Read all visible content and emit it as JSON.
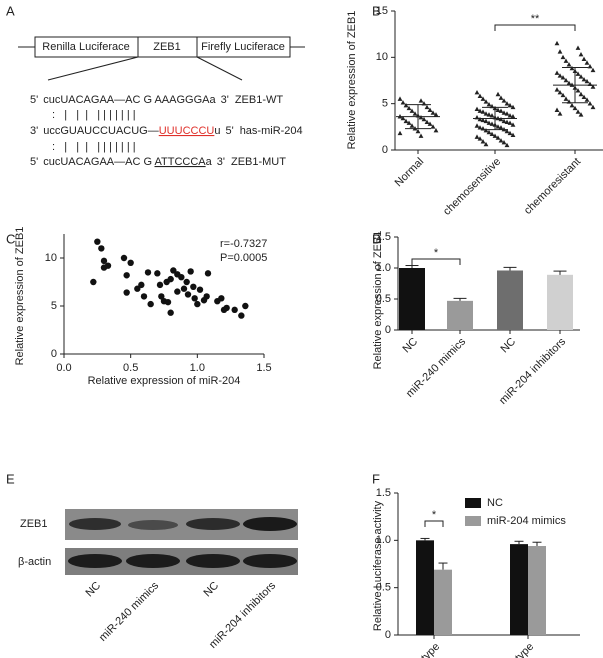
{
  "panel_a": {
    "label": "A",
    "construct": [
      "Renilla Luciferace",
      "ZEB1",
      "Firefly Luciferace"
    ],
    "sequences": [
      {
        "start": "5'",
        "parts": [
          {
            "text": "cucUACAGAA—AC G AAAGGGAa"
          }
        ],
        "end": "3'",
        "name": "ZEB1-WT"
      },
      {
        "start": "3'",
        "parts": [
          {
            "text": "uccGUAUCCUACUG—"
          },
          {
            "text": "UUUCCCU",
            "underline": true,
            "color": "#e0302a"
          },
          {
            "text": "u"
          }
        ],
        "end": "5'",
        "name": "has-miR-204"
      },
      {
        "start": "5'",
        "parts": [
          {
            "text": "cucUACAGAA—AC G "
          },
          {
            "text": "ATTCCCA",
            "underline": true
          },
          {
            "text": "a"
          }
        ],
        "end": "3'",
        "name": "ZEB1-MUT"
      }
    ],
    "pairing": [
      ":   |   |  |   | | | | | | |",
      ":   |   |  |   | | | | | | |"
    ]
  },
  "panel_e": {
    "label": "E",
    "rows": [
      "ZEB1",
      "β-actin"
    ],
    "lanes": [
      "NC",
      "miR-240 mimics",
      "NC",
      "miR-204 inhibitors"
    ]
  },
  "chart_data": [
    {
      "type": "strip",
      "panel": "B",
      "ylabel": "Relative expression of ZEB1",
      "categories": [
        "Normal",
        "chemosensitive",
        "chemoresistant"
      ],
      "values": [
        [
          5.5,
          5.3,
          5.1,
          5.0,
          4.8,
          4.6,
          4.5,
          4.3,
          4.2,
          4.0,
          3.9,
          3.8,
          3.7,
          3.6,
          3.5,
          3.4,
          3.3,
          3.1,
          3.0,
          2.9,
          2.8,
          2.6,
          2.5,
          2.3,
          2.1,
          2.0,
          1.8,
          1.5
        ],
        [
          6.2,
          6.0,
          5.8,
          5.6,
          5.5,
          5.3,
          5.2,
          5.0,
          4.9,
          4.8,
          4.7,
          4.6,
          4.5,
          4.4,
          4.3,
          4.2,
          4.2,
          4.1,
          4.0,
          3.9,
          3.9,
          3.8,
          3.7,
          3.7,
          3.6,
          3.5,
          3.5,
          3.4,
          3.3,
          3.3,
          3.2,
          3.1,
          3.1,
          3.0,
          2.9,
          2.9,
          2.8,
          2.7,
          2.7,
          2.6,
          2.5,
          2.4,
          2.4,
          2.3,
          2.2,
          2.1,
          2.0,
          1.9,
          1.8,
          1.7,
          1.6,
          1.5,
          1.4,
          1.3,
          1.2,
          1.0,
          0.9,
          0.8,
          0.6,
          0.5
        ],
        [
          11.5,
          11.0,
          10.6,
          10.3,
          10.0,
          9.8,
          9.6,
          9.4,
          9.2,
          9.0,
          8.8,
          8.6,
          8.5,
          8.3,
          8.2,
          8.0,
          7.9,
          7.8,
          7.6,
          7.5,
          7.4,
          7.2,
          7.1,
          7.0,
          6.8,
          6.7,
          6.5,
          6.4,
          6.2,
          6.0,
          5.9,
          5.7,
          5.5,
          5.4,
          5.2,
          5.0,
          4.8,
          4.6,
          4.5,
          4.3,
          4.1,
          3.9,
          3.8
        ]
      ],
      "mean": [
        3.6,
        3.4,
        7.0
      ],
      "sd": [
        1.3,
        1.2,
        1.9
      ],
      "ylim": [
        0,
        15
      ],
      "yticks": [
        0,
        5,
        10,
        15
      ],
      "significance": "**",
      "color": "#222"
    },
    {
      "type": "scatter",
      "panel": "C",
      "xlabel": "Relative expression of miR-204",
      "ylabel": "Relative expression of ZEB1",
      "x": [
        0.22,
        0.25,
        0.28,
        0.3,
        0.3,
        0.33,
        0.45,
        0.47,
        0.47,
        0.5,
        0.55,
        0.58,
        0.6,
        0.63,
        0.65,
        0.7,
        0.72,
        0.73,
        0.75,
        0.77,
        0.78,
        0.8,
        0.8,
        0.82,
        0.85,
        0.85,
        0.88,
        0.9,
        0.92,
        0.93,
        0.95,
        0.97,
        0.98,
        1.0,
        1.02,
        1.05,
        1.07,
        1.08,
        1.15,
        1.18,
        1.2,
        1.22,
        1.28,
        1.33,
        1.36
      ],
      "y": [
        7.5,
        11.7,
        11.0,
        9.7,
        9.0,
        9.2,
        10.0,
        8.2,
        6.4,
        9.5,
        6.8,
        7.2,
        6.0,
        8.5,
        5.2,
        8.4,
        7.2,
        6.0,
        5.5,
        7.5,
        5.4,
        7.8,
        4.3,
        8.7,
        8.3,
        6.5,
        8.0,
        6.8,
        7.5,
        6.2,
        8.6,
        7.0,
        5.8,
        5.2,
        6.7,
        5.6,
        6.0,
        8.4,
        5.5,
        5.8,
        4.6,
        4.8,
        4.6,
        4.0,
        5.0
      ],
      "xlim": [
        0,
        1.5
      ],
      "xticks": [
        {
          "value": 0,
          "label": "0.0"
        },
        0.5,
        {
          "value": 1,
          "label": "1.0"
        },
        1.5
      ],
      "ylim": [
        0,
        12.5
      ],
      "yticks": [
        0,
        5,
        10
      ],
      "annotations": [
        "r=-0.7327",
        "P=0.0005"
      ],
      "color": "#111"
    },
    {
      "type": "bar",
      "panel": "D",
      "ylabel": "Relative expression of ZEB1",
      "categories": [
        "NC",
        "miR-240 mimics",
        "NC",
        "miR-204 inhibitors"
      ],
      "values": [
        1.0,
        0.47,
        0.96,
        0.89
      ],
      "errors": [
        0.04,
        0.04,
        0.05,
        0.06
      ],
      "colors": [
        "#111111",
        "#9a9a9a",
        "#6e6e6e",
        "#d0d0d0"
      ],
      "ylim": [
        0,
        1.5
      ],
      "yticks": [
        0,
        0.5,
        {
          "value": 1,
          "label": "1.0"
        },
        1.5
      ],
      "significance": "*"
    },
    {
      "type": "bar",
      "panel": "F",
      "ylabel": "Relative Luciferase activity",
      "categories": [
        "Wild type",
        "Mutant type"
      ],
      "series": [
        {
          "name": "NC",
          "color": "#111111",
          "values": [
            1.0,
            0.96
          ],
          "errors": [
            0.02,
            0.03
          ]
        },
        {
          "name": "miR-204 mimics",
          "color": "#9a9a9a",
          "values": [
            0.69,
            0.94
          ],
          "errors": [
            0.07,
            0.04
          ]
        }
      ],
      "ylim": [
        0,
        1.5
      ],
      "yticks": [
        0,
        0.5,
        {
          "value": 1,
          "label": "1.0"
        },
        1.5
      ],
      "legend": "top-right",
      "significance": "*"
    }
  ]
}
